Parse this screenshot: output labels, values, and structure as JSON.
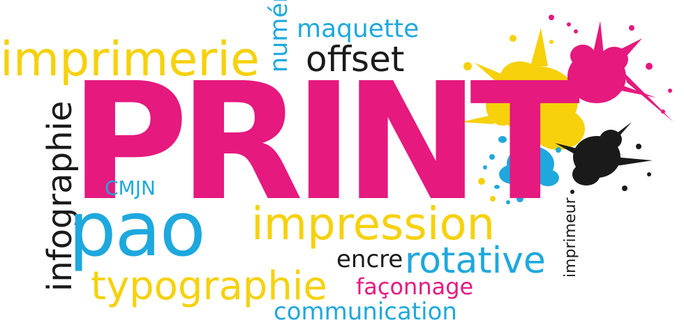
{
  "colors": {
    "magenta": "#e5197e",
    "cyan": "#1ea8de",
    "yellow": "#f6d10c",
    "black": "#1a1a1a"
  },
  "words": {
    "print": "PRINT",
    "imprimerie": "imprimerie",
    "maquette": "maquette",
    "offset": "offset",
    "numerique": "numérique",
    "infographie": "infographie",
    "cmjn": "CMJN",
    "pao": "pao",
    "impression": "impression",
    "encre": "encre",
    "rotative": "rotative",
    "imprimeur": "imprimeur",
    "typographie": "typographie",
    "faconnage": "façonnage",
    "communication": "communication"
  }
}
